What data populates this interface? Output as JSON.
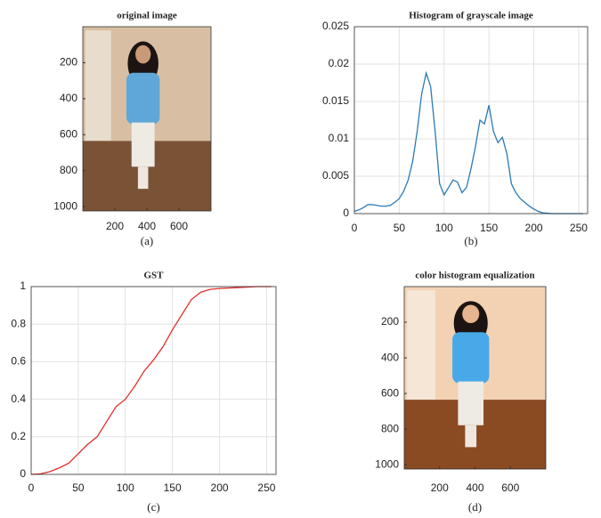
{
  "chart_data": [
    {
      "type": "image",
      "title": "original image",
      "xlabel": "(a)",
      "xlim": [
        0,
        800
      ],
      "ylim": [
        0,
        1024
      ],
      "y_reversed": true,
      "xticks": [
        200,
        400,
        600
      ],
      "yticks": [
        200,
        400,
        600,
        800,
        1000
      ],
      "grid": false
    },
    {
      "type": "line",
      "title": "Histogram of grayscale image",
      "xlabel": "(b)",
      "xlim": [
        0,
        260
      ],
      "ylim": [
        0,
        0.025
      ],
      "xticks": [
        0,
        50,
        100,
        150,
        200,
        250
      ],
      "yticks": [
        0,
        0.005,
        0.01,
        0.015,
        0.02,
        0.025
      ],
      "grid": true,
      "color": "#2a7ab9",
      "x": [
        0,
        5,
        10,
        15,
        20,
        25,
        30,
        35,
        40,
        45,
        50,
        55,
        60,
        65,
        70,
        75,
        80,
        85,
        90,
        95,
        100,
        105,
        110,
        115,
        120,
        125,
        130,
        135,
        140,
        145,
        150,
        155,
        160,
        165,
        170,
        175,
        180,
        185,
        190,
        195,
        200,
        205,
        210,
        215,
        220,
        230,
        240,
        250,
        255
      ],
      "values": [
        0.0003,
        0.0005,
        0.0008,
        0.0012,
        0.0012,
        0.0011,
        0.001,
        0.001,
        0.0011,
        0.0015,
        0.002,
        0.003,
        0.0045,
        0.007,
        0.011,
        0.016,
        0.0188,
        0.017,
        0.011,
        0.004,
        0.0025,
        0.0035,
        0.0045,
        0.0042,
        0.0028,
        0.0035,
        0.006,
        0.009,
        0.0125,
        0.012,
        0.0145,
        0.011,
        0.0095,
        0.0102,
        0.008,
        0.004,
        0.0028,
        0.002,
        0.0015,
        0.001,
        0.0006,
        0.0003,
        0.0001,
        5e-05,
        0,
        0,
        0,
        0,
        0
      ]
    },
    {
      "type": "line",
      "title": "GST",
      "xlabel": "(c)",
      "xlim": [
        0,
        260
      ],
      "ylim": [
        0,
        1
      ],
      "xticks": [
        0,
        50,
        100,
        150,
        200,
        250
      ],
      "yticks": [
        0,
        0.2,
        0.4,
        0.6,
        0.8,
        1
      ],
      "grid": true,
      "color": "#e0302a",
      "x": [
        0,
        10,
        20,
        30,
        40,
        50,
        60,
        70,
        80,
        90,
        100,
        110,
        120,
        130,
        140,
        150,
        160,
        170,
        180,
        190,
        200,
        220,
        240,
        255
      ],
      "values": [
        0,
        0.003,
        0.015,
        0.035,
        0.06,
        0.11,
        0.16,
        0.2,
        0.28,
        0.36,
        0.4,
        0.47,
        0.55,
        0.61,
        0.68,
        0.77,
        0.85,
        0.93,
        0.97,
        0.985,
        0.99,
        0.995,
        1,
        1
      ]
    },
    {
      "type": "image",
      "title": "color histogram equalization",
      "xlabel": "(d)",
      "xlim": [
        0,
        800
      ],
      "ylim": [
        0,
        1024
      ],
      "y_reversed": true,
      "xticks": [
        200,
        400,
        600
      ],
      "yticks": [
        200,
        400,
        600,
        800,
        1000
      ],
      "grid": false
    }
  ]
}
